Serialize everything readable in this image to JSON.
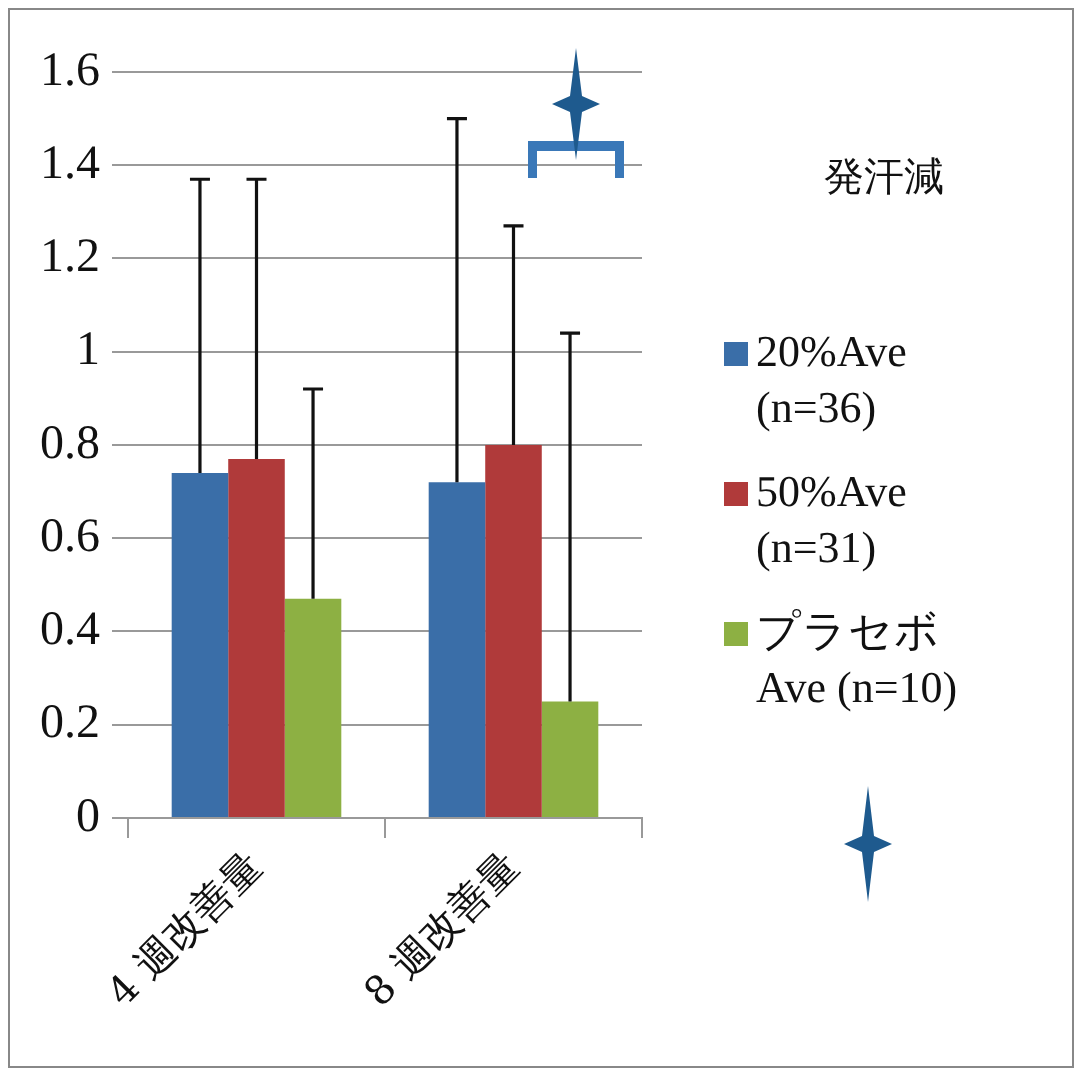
{
  "chart_data": {
    "type": "bar",
    "legend_title": "発汗減",
    "categories": [
      "4 週改善量",
      "8 週改善量"
    ],
    "series": [
      {
        "name": "20%Ave (n=36)",
        "color": "#3a6ea8",
        "values": [
          0.74,
          0.72
        ],
        "errors": [
          [
            0.74,
            1.37
          ],
          [
            0.72,
            1.5
          ]
        ]
      },
      {
        "name": "50%Ave (n=31)",
        "color": "#b03a3a",
        "values": [
          0.77,
          0.8
        ],
        "errors": [
          [
            0.77,
            1.37
          ],
          [
            0.8,
            1.27
          ]
        ]
      },
      {
        "name": "プラセボAve (n=10)",
        "color": "#8db043",
        "values": [
          0.47,
          0.25
        ],
        "errors": [
          [
            0.47,
            0.92
          ],
          [
            0.25,
            1.04
          ]
        ]
      }
    ],
    "ylim": [
      0,
      1.6
    ],
    "yticks": [
      0,
      0.2,
      0.4,
      0.6,
      0.8,
      1,
      1.2,
      1.4,
      1.6
    ],
    "grid": "y",
    "legend": "right"
  }
}
